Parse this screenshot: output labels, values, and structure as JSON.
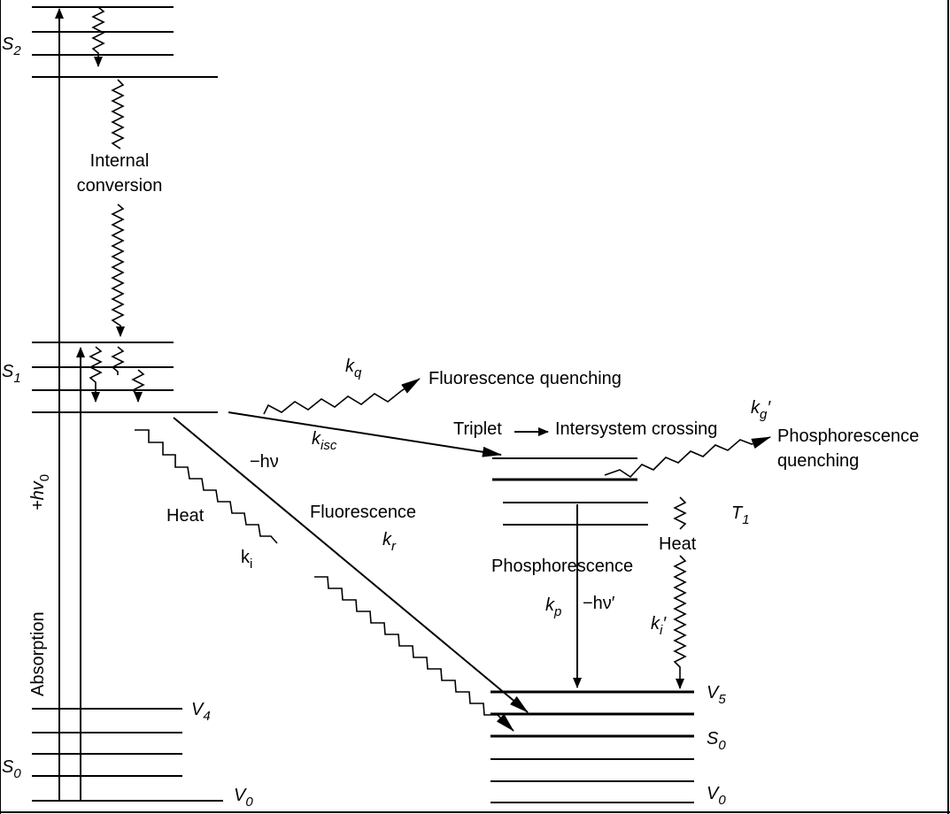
{
  "labels": {
    "s2": {
      "main": "S",
      "sub": "2"
    },
    "s1": {
      "main": "S",
      "sub": "1"
    },
    "s0_left": {
      "main": "S",
      "sub": "0"
    },
    "v4": {
      "main": "V",
      "sub": "4"
    },
    "v0_left": {
      "main": "V",
      "sub": "0"
    },
    "internal_conversion_1": "Internal",
    "internal_conversion_2": "conversion",
    "absorption": "Absorption",
    "hv0": {
      "main": "+hv",
      "sub": "0"
    },
    "kq": {
      "main": "k",
      "sub": "q"
    },
    "fluorescence_quenching": "Fluorescence quenching",
    "kisc": {
      "main": "k",
      "sub": "isc"
    },
    "triplet": "Triplet",
    "intersystem_crossing": "Intersystem crossing",
    "kg": {
      "main": "k",
      "sub": "g",
      "prime": "′"
    },
    "phosphorescence_quenching_1": "Phosphorescence",
    "phosphorescence_quenching_2": "quenching",
    "minus_hv": "−hν",
    "heat_left": "Heat",
    "ki": {
      "main": "k",
      "sub": "i"
    },
    "fluorescence": "Fluorescence",
    "kr": {
      "main": "k",
      "sub": "r"
    },
    "t1": {
      "main": "T",
      "sub": "1"
    },
    "heat_right": "Heat",
    "phosphorescence": "Phosphorescence",
    "kp": {
      "main": "k",
      "sub": "p"
    },
    "minus_hv_prime": "−hν′",
    "ki_prime": {
      "main": "k",
      "sub": "i",
      "prime": "′"
    },
    "v5": {
      "main": "V",
      "sub": "5"
    },
    "s0_right": {
      "main": "S",
      "sub": "0"
    },
    "v0_right": {
      "main": "V",
      "sub": "0"
    }
  }
}
